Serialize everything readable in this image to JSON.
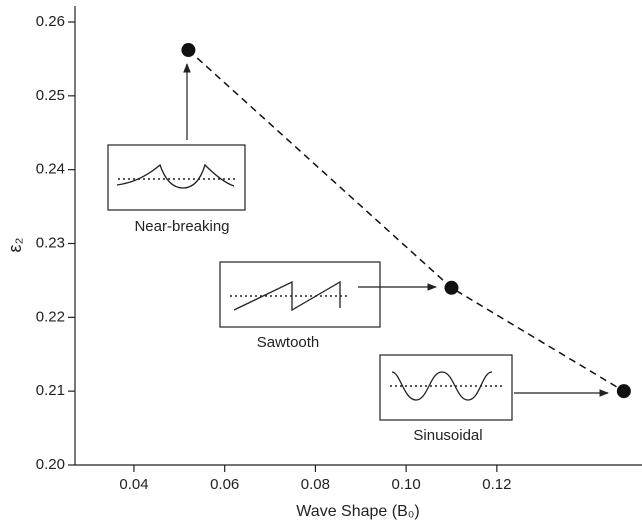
{
  "chart_data": {
    "type": "line",
    "x_label": "Wave Shape (B₀)",
    "y_label": "ε₂",
    "x": [
      0.052,
      0.11,
      0.148
    ],
    "series": [
      {
        "color": "#111111",
        "values": [
          0.2562,
          0.224,
          0.21
        ]
      }
    ],
    "xlim": [
      0.027,
      0.152
    ],
    "ylim": [
      0.2,
      0.26
    ],
    "xticks": [
      0.04,
      0.06,
      0.08,
      {
        "value": 0.1,
        "label": "0.10"
      },
      0.12
    ],
    "yticks": [
      {
        "value": 0.2,
        "label": "0.20"
      },
      0.21,
      0.22,
      0.23,
      0.24,
      0.25,
      0.26
    ],
    "annotations": [
      "Near-breaking",
      "Sawtooth",
      "Sinusoidal"
    ]
  }
}
